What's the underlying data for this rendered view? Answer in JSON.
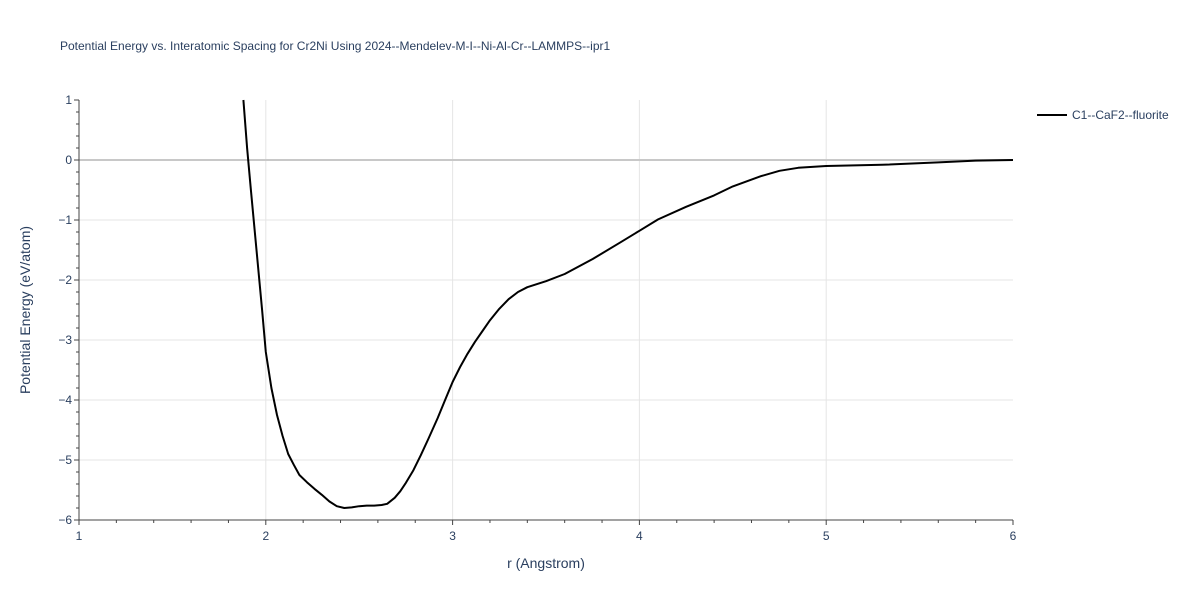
{
  "chart_data": {
    "type": "line",
    "title": "Potential Energy vs. Interatomic Spacing for Cr2Ni Using 2024--Mendelev-M-I--Ni-Al-Cr--LAMMPS--ipr1",
    "xlabel": "r (Angstrom)",
    "ylabel": "Potential Energy (eV/atom)",
    "xlim": [
      1,
      6
    ],
    "ylim": [
      -6,
      1
    ],
    "xticks": [
      "1",
      "2",
      "3",
      "4",
      "5",
      "6"
    ],
    "yticks": [
      "−6",
      "−5",
      "−4",
      "−3",
      "−2",
      "−1",
      "0",
      "1"
    ],
    "grid": true,
    "legend_position": "top-right",
    "series": [
      {
        "name": "C1--CaF2--fluorite",
        "color": "#000000",
        "x": [
          1.88,
          1.9,
          1.92,
          1.95,
          1.98,
          2.0,
          2.03,
          2.06,
          2.09,
          2.12,
          2.15,
          2.18,
          2.22,
          2.26,
          2.3,
          2.34,
          2.38,
          2.42,
          2.46,
          2.5,
          2.54,
          2.58,
          2.62,
          2.65,
          2.69,
          2.72,
          2.75,
          2.79,
          2.83,
          2.87,
          2.92,
          2.96,
          3.0,
          3.04,
          3.08,
          3.12,
          3.16,
          3.2,
          3.25,
          3.3,
          3.35,
          3.4,
          3.5,
          3.6,
          3.75,
          3.9,
          4.0,
          4.1,
          4.25,
          4.4,
          4.5,
          4.65,
          4.75,
          4.85,
          5.0,
          5.3,
          5.6,
          5.8,
          6.0
        ],
        "y": [
          1.0,
          0.2,
          -0.5,
          -1.5,
          -2.5,
          -3.2,
          -3.8,
          -4.25,
          -4.6,
          -4.9,
          -5.08,
          -5.25,
          -5.37,
          -5.48,
          -5.58,
          -5.69,
          -5.77,
          -5.8,
          -5.79,
          -5.77,
          -5.76,
          -5.76,
          -5.75,
          -5.73,
          -5.63,
          -5.52,
          -5.38,
          -5.17,
          -4.92,
          -4.65,
          -4.3,
          -4.0,
          -3.7,
          -3.45,
          -3.23,
          -3.03,
          -2.85,
          -2.67,
          -2.48,
          -2.32,
          -2.2,
          -2.12,
          -2.02,
          -1.9,
          -1.65,
          -1.37,
          -1.18,
          -0.99,
          -0.78,
          -0.59,
          -0.44,
          -0.27,
          -0.18,
          -0.13,
          -0.1,
          -0.08,
          -0.04,
          -0.01,
          0.0
        ]
      }
    ]
  }
}
